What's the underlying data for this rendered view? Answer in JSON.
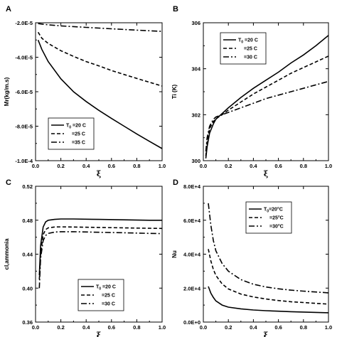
{
  "chart_data": [
    {
      "panel": "A",
      "type": "line",
      "xlabel": "ξ",
      "ylabel": "Mr(kg/m.s)",
      "xlim": [
        0,
        1.0
      ],
      "ylim": [
        -0.0001,
        -2e-05
      ],
      "xticks": [
        "0.0",
        "0.2",
        "0.4",
        "0.6",
        "0.8",
        "1.0"
      ],
      "yticks": [
        "-2.0E-5",
        "-4.0E-5",
        "-6.0E-5",
        "-8.0E-5",
        "-1.0E-4"
      ],
      "legend": {
        "position": "bottom-left",
        "entries": [
          {
            "prefix": "T",
            "sub": "0",
            "text": " =20 C"
          },
          {
            "prefix": "",
            "sub": "",
            "text": "=25 C"
          },
          {
            "prefix": "",
            "sub": "",
            "text": "=35 C"
          }
        ]
      },
      "series": [
        {
          "name": "T0 =20 C",
          "dash": "solid",
          "x": [
            0.02,
            0.05,
            0.1,
            0.2,
            0.3,
            0.4,
            0.5,
            0.6,
            0.7,
            0.8,
            0.9,
            1.0
          ],
          "y": [
            -3e-05,
            -3.55e-05,
            -4.25e-05,
            -5.25e-05,
            -6e-05,
            -6.57e-05,
            -7.08e-05,
            -7.55e-05,
            -8e-05,
            -8.45e-05,
            -8.88e-05,
            -9.3e-05
          ]
        },
        {
          "name": "=25 C",
          "dash": "dash",
          "x": [
            0.02,
            0.05,
            0.1,
            0.2,
            0.3,
            0.4,
            0.5,
            0.6,
            0.7,
            0.8,
            0.9,
            1.0
          ],
          "y": [
            -2.55e-05,
            -2.9e-05,
            -3.2e-05,
            -3.62e-05,
            -3.95e-05,
            -4.25e-05,
            -4.5e-05,
            -4.77e-05,
            -5e-05,
            -5.23e-05,
            -5.45e-05,
            -5.67e-05
          ]
        },
        {
          "name": "=35 C",
          "dash": "dashdot",
          "x": [
            0.02,
            0.1,
            0.2,
            0.4,
            0.6,
            0.8,
            1.0
          ],
          "y": [
            -2.05e-05,
            -2.12e-05,
            -2.18e-05,
            -2.27e-05,
            -2.35e-05,
            -2.43e-05,
            -2.5e-05
          ]
        }
      ]
    },
    {
      "panel": "B",
      "type": "line",
      "xlabel": "ξ",
      "ylabel": "Ti (K)",
      "xlim": [
        0,
        1.0
      ],
      "ylim": [
        300,
        306
      ],
      "xticks": [
        "0.0",
        "0.2",
        "0.4",
        "0.6",
        "0.8",
        "1.0"
      ],
      "yticks": [
        "300",
        "302",
        "304",
        "306"
      ],
      "legend": {
        "position": "top-left",
        "entries": [
          {
            "prefix": "T",
            "sub": "0",
            "text": " =20 C"
          },
          {
            "prefix": "",
            "sub": "",
            "text": "=25 C"
          },
          {
            "prefix": "",
            "sub": "",
            "text": "=30 C"
          }
        ]
      },
      "series": [
        {
          "name": "T0 =20 C",
          "dash": "solid",
          "x": [
            0.02,
            0.03,
            0.05,
            0.08,
            0.1,
            0.15,
            0.2,
            0.3,
            0.4,
            0.5,
            0.6,
            0.7,
            0.8,
            0.9,
            1.0
          ],
          "y": [
            300.1,
            300.6,
            301.2,
            301.6,
            301.8,
            302.05,
            302.3,
            302.75,
            303.15,
            303.5,
            303.85,
            304.25,
            304.6,
            305.0,
            305.45
          ]
        },
        {
          "name": "=25 C",
          "dash": "dash",
          "x": [
            0.02,
            0.03,
            0.05,
            0.08,
            0.1,
            0.15,
            0.2,
            0.3,
            0.4,
            0.5,
            0.6,
            0.7,
            0.8,
            0.9,
            1.0
          ],
          "y": [
            300.2,
            300.8,
            301.4,
            301.7,
            301.82,
            302.0,
            302.2,
            302.55,
            302.9,
            303.2,
            303.5,
            303.8,
            304.05,
            304.3,
            304.55
          ]
        },
        {
          "name": "=30 C",
          "dash": "dashdot",
          "x": [
            0.02,
            0.03,
            0.05,
            0.08,
            0.1,
            0.15,
            0.2,
            0.3,
            0.4,
            0.5,
            0.6,
            0.7,
            0.8,
            0.9,
            1.0
          ],
          "y": [
            300.4,
            301.0,
            301.5,
            301.8,
            301.9,
            302.0,
            302.1,
            302.3,
            302.5,
            302.7,
            302.85,
            303.0,
            303.15,
            303.3,
            303.45
          ]
        }
      ]
    },
    {
      "panel": "C",
      "type": "line",
      "xlabel": "ξ",
      "ylabel": "cI,ammonia",
      "xlim": [
        0,
        1.0
      ],
      "ylim": [
        0.36,
        0.52
      ],
      "xticks": [
        "0.0",
        "0.2",
        "0.4",
        "0.6",
        "0.8",
        "1.0"
      ],
      "yticks": [
        "0.36",
        "0.40",
        "0.44",
        "0.48",
        "0.52"
      ],
      "legend": {
        "position": "bottom-right",
        "entries": [
          {
            "prefix": "T",
            "sub": "0",
            "text": " =20 C"
          },
          {
            "prefix": "",
            "sub": "",
            "text": "=25 C"
          },
          {
            "prefix": "",
            "sub": "",
            "text": "=30 C"
          }
        ]
      },
      "series": [
        {
          "name": "T0 =20 C",
          "dash": "solid",
          "x": [
            0.03,
            0.04,
            0.06,
            0.08,
            0.1,
            0.15,
            0.2,
            0.3,
            0.5,
            0.7,
            0.9,
            1.0
          ],
          "y": [
            0.415,
            0.45,
            0.472,
            0.478,
            0.48,
            0.481,
            0.4815,
            0.4815,
            0.481,
            0.4805,
            0.48,
            0.48
          ]
        },
        {
          "name": "=25 C",
          "dash": "dash",
          "x": [
            0.03,
            0.04,
            0.06,
            0.08,
            0.1,
            0.15,
            0.2,
            0.3,
            0.5,
            0.7,
            0.9,
            1.0
          ],
          "y": [
            0.41,
            0.44,
            0.463,
            0.469,
            0.471,
            0.472,
            0.4722,
            0.472,
            0.4715,
            0.471,
            0.4705,
            0.4703
          ]
        },
        {
          "name": "=30 C",
          "dash": "dashdot",
          "x": [
            0.03,
            0.04,
            0.06,
            0.08,
            0.1,
            0.15,
            0.2,
            0.3,
            0.5,
            0.7,
            0.9,
            1.0
          ],
          "y": [
            0.4,
            0.435,
            0.456,
            0.462,
            0.4645,
            0.466,
            0.4665,
            0.4665,
            0.4658,
            0.4652,
            0.4645,
            0.4642
          ]
        }
      ]
    },
    {
      "panel": "D",
      "type": "line",
      "xlabel": "ξ",
      "ylabel": "Nu",
      "xlim": [
        0,
        1.0
      ],
      "ylim": [
        0,
        80000
      ],
      "xticks": [
        "0.0",
        "0.2",
        "0.4",
        "0.6",
        "0.8",
        "1.0"
      ],
      "yticks": [
        "0.0E+0",
        "2.0E+4",
        "4.0E+4",
        "6.0E+4",
        "8.0E+4"
      ],
      "legend": {
        "position": "top-center",
        "entries": [
          {
            "prefix": "T",
            "sub": "0",
            "text": "=20°C"
          },
          {
            "prefix": "",
            "sub": "",
            "text": "=25°C"
          },
          {
            "prefix": "",
            "sub": "",
            "text": "=30°C"
          }
        ]
      },
      "series": [
        {
          "name": "T0=20°C",
          "dash": "solid",
          "x": [
            0.04,
            0.06,
            0.08,
            0.1,
            0.15,
            0.2,
            0.3,
            0.4,
            0.5,
            0.6,
            0.7,
            0.8,
            0.9,
            1.0
          ],
          "y": [
            21000,
            17000,
            14500,
            12500,
            10000,
            8800,
            7800,
            7100,
            6700,
            6400,
            6100,
            5900,
            5700,
            5500
          ]
        },
        {
          "name": "=25°C",
          "dash": "dash",
          "x": [
            0.04,
            0.06,
            0.08,
            0.1,
            0.15,
            0.2,
            0.3,
            0.4,
            0.5,
            0.6,
            0.7,
            0.8,
            0.9,
            1.0
          ],
          "y": [
            43000,
            36000,
            31000,
            27500,
            22500,
            19500,
            16500,
            14800,
            13600,
            12700,
            12000,
            11500,
            11000,
            10600
          ]
        },
        {
          "name": "=30°C",
          "dash": "dashdot",
          "x": [
            0.04,
            0.06,
            0.08,
            0.1,
            0.15,
            0.2,
            0.3,
            0.4,
            0.5,
            0.6,
            0.7,
            0.8,
            0.9,
            1.0
          ],
          "y": [
            70000,
            57000,
            48000,
            42000,
            34500,
            30000,
            25000,
            22300,
            20700,
            19600,
            18800,
            18200,
            17700,
            17200
          ]
        }
      ]
    }
  ]
}
